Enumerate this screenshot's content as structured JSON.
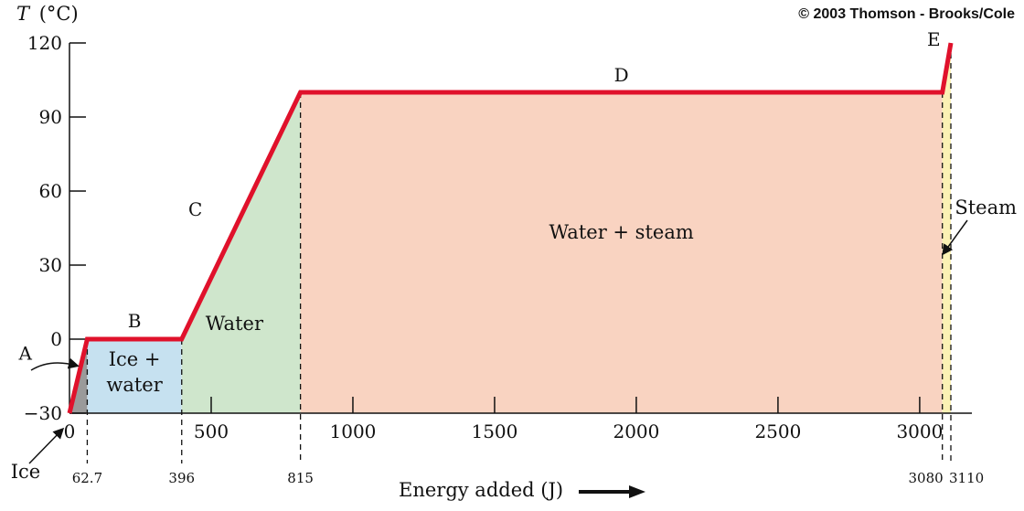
{
  "copyright": "© 2003 Thomson - Brooks/Cole",
  "chart_data": {
    "type": "line",
    "ylabel": "T (°C)",
    "ylabel_parts": {
      "symbol": "T",
      "unit": "(°C)"
    },
    "xlabel": "Energy added (J)",
    "xlim": [
      0,
      3110
    ],
    "ylim": [
      -30,
      120
    ],
    "y_ticks": [
      -30,
      0,
      30,
      60,
      90,
      120
    ],
    "y_tick_labels": [
      "−30",
      "0",
      "30",
      "60",
      "90",
      "120"
    ],
    "x_ticks": [
      0,
      500,
      1000,
      1500,
      2000,
      2500,
      3000
    ],
    "x_tick_labels": [
      "0",
      "500",
      "1000",
      "1500",
      "2000",
      "2500",
      "3000"
    ],
    "marked_x": [
      62.7,
      396,
      815,
      3080,
      3110
    ],
    "marked_x_labels": [
      "62.7",
      "396",
      "815",
      "3080",
      "3110"
    ],
    "series": [
      {
        "x": [
          0,
          62.7,
          396,
          815,
          3080,
          3110
        ],
        "y": [
          -30,
          0,
          0,
          100,
          100,
          120
        ],
        "color": "#e0112b"
      }
    ],
    "segment_labels": [
      {
        "text": "A",
        "x": 31.35,
        "y": -15
      },
      {
        "text": "B",
        "x": 229.35,
        "y": 0
      },
      {
        "text": "C",
        "x": 605.5,
        "y": 50
      },
      {
        "text": "D",
        "x": 1947.5,
        "y": 100
      },
      {
        "text": "E",
        "x": 3095,
        "y": 110
      }
    ],
    "regions": [
      {
        "name": "ice",
        "label": "Ice",
        "x_range": [
          0,
          62.7
        ],
        "color": "#9a9a9a"
      },
      {
        "name": "ice-water",
        "label_lines": [
          "Ice +",
          "water"
        ],
        "x_range": [
          62.7,
          396
        ],
        "color": "#c6e1f0"
      },
      {
        "name": "water",
        "label": "Water",
        "x_range": [
          396,
          815
        ],
        "color": "#cfe6cc"
      },
      {
        "name": "water-steam",
        "label": "Water + steam",
        "x_range": [
          815,
          3080
        ],
        "color": "#f9d3c1"
      },
      {
        "name": "steam",
        "label": "Steam",
        "x_range": [
          3080,
          3110
        ],
        "color": "#fbf1b4"
      }
    ],
    "grid": false
  }
}
